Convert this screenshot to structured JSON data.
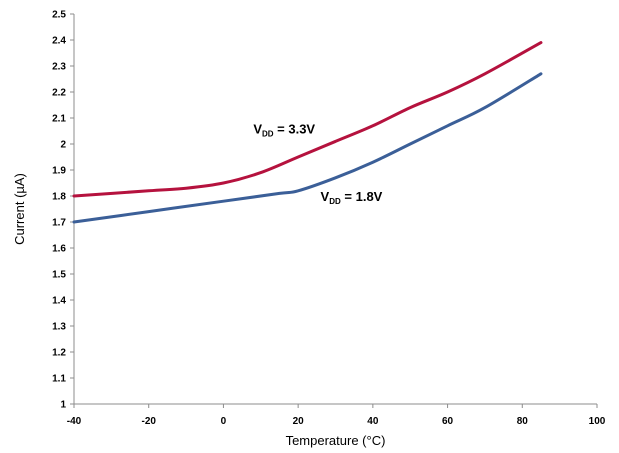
{
  "chart_data": {
    "type": "line",
    "title": "",
    "xlabel": "Temperature (°C)",
    "ylabel": "Current (µA)",
    "xlim": [
      -40,
      100
    ],
    "ylim": [
      1,
      2.5
    ],
    "x_ticks": [
      -40,
      -20,
      0,
      20,
      40,
      60,
      80,
      100
    ],
    "x_tick_labels": [
      "-40",
      "-20",
      "0",
      "20",
      "40",
      "60",
      "80",
      "100"
    ],
    "y_ticks": [
      1,
      1.1,
      1.2,
      1.3,
      1.4,
      1.5,
      1.6,
      1.7,
      1.8,
      1.9,
      2,
      2.1,
      2.2,
      2.3,
      2.4,
      2.5
    ],
    "y_tick_labels": [
      "1",
      "1.1",
      "1.2",
      "1.3",
      "1.4",
      "1.5",
      "1.6",
      "1.7",
      "1.8",
      "1.9",
      "2",
      "2.1",
      "2.2",
      "2.3",
      "2.4",
      "2.5"
    ],
    "grid": false,
    "legend": "none",
    "series": [
      {
        "color": "#b5123e",
        "x": [
          -40,
          -20,
          -10,
          0,
          10,
          20,
          30,
          40,
          50,
          60,
          70,
          85
        ],
        "y": [
          1.8,
          1.82,
          1.83,
          1.85,
          1.89,
          1.95,
          2.01,
          2.07,
          2.14,
          2.2,
          2.27,
          2.39
        ]
      },
      {
        "color": "#3b5f98",
        "x": [
          -40,
          -20,
          0,
          15,
          20,
          30,
          40,
          50,
          60,
          70,
          85
        ],
        "y": [
          1.7,
          1.74,
          1.78,
          1.81,
          1.82,
          1.87,
          1.93,
          2.0,
          2.07,
          2.14,
          2.27
        ]
      }
    ],
    "annotations": [
      {
        "main": "V",
        "sub": "DD",
        "rest": " = 3.3V",
        "x": 8,
        "y": 2.04
      },
      {
        "main": "V",
        "sub": "DD",
        "rest": " = 1.8V",
        "x": 26,
        "y": 1.78
      }
    ]
  }
}
